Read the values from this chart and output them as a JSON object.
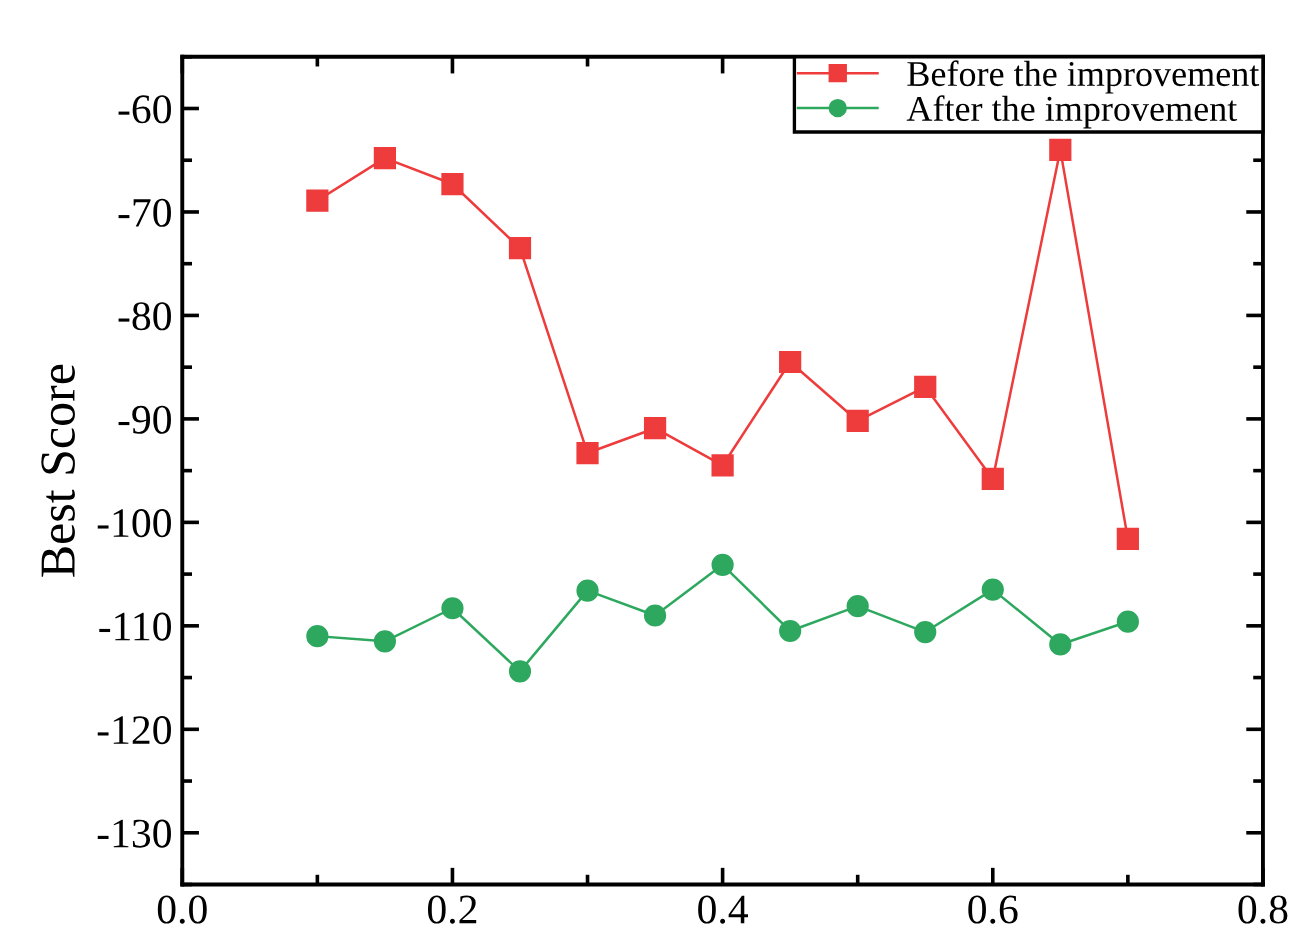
{
  "chart_data": {
    "type": "line",
    "ylabel": "Best Score",
    "x": [
      0.1,
      0.15,
      0.2,
      0.25,
      0.3,
      0.35,
      0.4,
      0.45,
      0.5,
      0.55,
      0.6,
      0.65,
      0.7
    ],
    "series": [
      {
        "name": "Before the improvement",
        "color": "#ee3b3b",
        "marker": "square",
        "values": [
          -68.9,
          -64.8,
          -67.3,
          -73.5,
          -93.3,
          -90.9,
          -94.5,
          -84.5,
          -90.2,
          -86.9,
          -95.8,
          -64,
          -101.6
        ]
      },
      {
        "name": "After the improvement",
        "color": "#2ea85f",
        "marker": "circle",
        "values": [
          -111.0,
          -111.5,
          -108.3,
          -114.4,
          -106.6,
          -109.0,
          -104.1,
          -110.5,
          -108.1,
          -110.6,
          -106.5,
          -111.8,
          -109.6
        ]
      }
    ],
    "xlim": [
      0.0,
      0.8
    ],
    "xticks": [
      {
        "value": 0.0,
        "label": "0.0"
      },
      0.2,
      0.4,
      0.6,
      0.8
    ],
    "ylim": [
      -135,
      -55
    ],
    "yticks": [
      -130,
      -120,
      -110,
      -100,
      -90,
      -80,
      -70,
      -60
    ],
    "grid": false,
    "legend": "top right",
    "line_style": "solid"
  }
}
